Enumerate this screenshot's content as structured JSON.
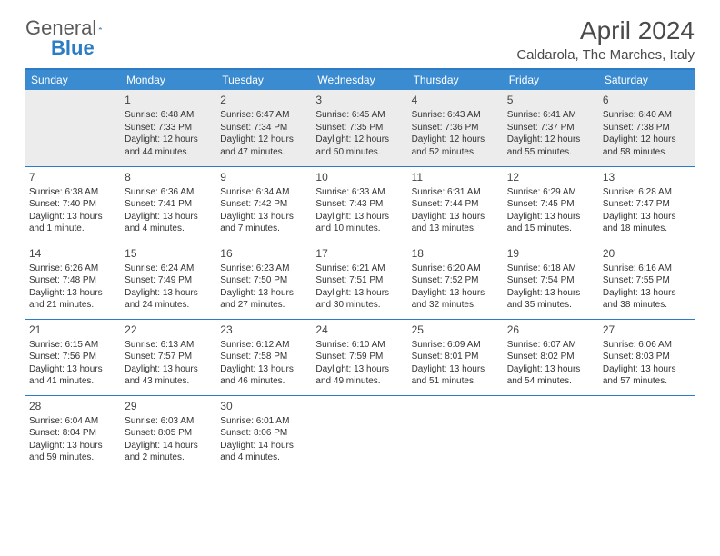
{
  "brand": {
    "word1": "General",
    "word2": "Blue"
  },
  "title": "April 2024",
  "location": "Caldarola, The Marches, Italy",
  "colors": {
    "accent": "#2b7cc4",
    "header_bg": "#3a8bd0",
    "header_text": "#ffffff",
    "shaded_row": "#ececec",
    "text": "#333333",
    "title_text": "#4a4a4a"
  },
  "columns": [
    "Sunday",
    "Monday",
    "Tuesday",
    "Wednesday",
    "Thursday",
    "Friday",
    "Saturday"
  ],
  "weeks": [
    {
      "shaded": true,
      "days": [
        null,
        {
          "n": "1",
          "sunrise": "Sunrise: 6:48 AM",
          "sunset": "Sunset: 7:33 PM",
          "d1": "Daylight: 12 hours",
          "d2": "and 44 minutes."
        },
        {
          "n": "2",
          "sunrise": "Sunrise: 6:47 AM",
          "sunset": "Sunset: 7:34 PM",
          "d1": "Daylight: 12 hours",
          "d2": "and 47 minutes."
        },
        {
          "n": "3",
          "sunrise": "Sunrise: 6:45 AM",
          "sunset": "Sunset: 7:35 PM",
          "d1": "Daylight: 12 hours",
          "d2": "and 50 minutes."
        },
        {
          "n": "4",
          "sunrise": "Sunrise: 6:43 AM",
          "sunset": "Sunset: 7:36 PM",
          "d1": "Daylight: 12 hours",
          "d2": "and 52 minutes."
        },
        {
          "n": "5",
          "sunrise": "Sunrise: 6:41 AM",
          "sunset": "Sunset: 7:37 PM",
          "d1": "Daylight: 12 hours",
          "d2": "and 55 minutes."
        },
        {
          "n": "6",
          "sunrise": "Sunrise: 6:40 AM",
          "sunset": "Sunset: 7:38 PM",
          "d1": "Daylight: 12 hours",
          "d2": "and 58 minutes."
        }
      ]
    },
    {
      "shaded": false,
      "days": [
        {
          "n": "7",
          "sunrise": "Sunrise: 6:38 AM",
          "sunset": "Sunset: 7:40 PM",
          "d1": "Daylight: 13 hours",
          "d2": "and 1 minute."
        },
        {
          "n": "8",
          "sunrise": "Sunrise: 6:36 AM",
          "sunset": "Sunset: 7:41 PM",
          "d1": "Daylight: 13 hours",
          "d2": "and 4 minutes."
        },
        {
          "n": "9",
          "sunrise": "Sunrise: 6:34 AM",
          "sunset": "Sunset: 7:42 PM",
          "d1": "Daylight: 13 hours",
          "d2": "and 7 minutes."
        },
        {
          "n": "10",
          "sunrise": "Sunrise: 6:33 AM",
          "sunset": "Sunset: 7:43 PM",
          "d1": "Daylight: 13 hours",
          "d2": "and 10 minutes."
        },
        {
          "n": "11",
          "sunrise": "Sunrise: 6:31 AM",
          "sunset": "Sunset: 7:44 PM",
          "d1": "Daylight: 13 hours",
          "d2": "and 13 minutes."
        },
        {
          "n": "12",
          "sunrise": "Sunrise: 6:29 AM",
          "sunset": "Sunset: 7:45 PM",
          "d1": "Daylight: 13 hours",
          "d2": "and 15 minutes."
        },
        {
          "n": "13",
          "sunrise": "Sunrise: 6:28 AM",
          "sunset": "Sunset: 7:47 PM",
          "d1": "Daylight: 13 hours",
          "d2": "and 18 minutes."
        }
      ]
    },
    {
      "shaded": false,
      "days": [
        {
          "n": "14",
          "sunrise": "Sunrise: 6:26 AM",
          "sunset": "Sunset: 7:48 PM",
          "d1": "Daylight: 13 hours",
          "d2": "and 21 minutes."
        },
        {
          "n": "15",
          "sunrise": "Sunrise: 6:24 AM",
          "sunset": "Sunset: 7:49 PM",
          "d1": "Daylight: 13 hours",
          "d2": "and 24 minutes."
        },
        {
          "n": "16",
          "sunrise": "Sunrise: 6:23 AM",
          "sunset": "Sunset: 7:50 PM",
          "d1": "Daylight: 13 hours",
          "d2": "and 27 minutes."
        },
        {
          "n": "17",
          "sunrise": "Sunrise: 6:21 AM",
          "sunset": "Sunset: 7:51 PM",
          "d1": "Daylight: 13 hours",
          "d2": "and 30 minutes."
        },
        {
          "n": "18",
          "sunrise": "Sunrise: 6:20 AM",
          "sunset": "Sunset: 7:52 PM",
          "d1": "Daylight: 13 hours",
          "d2": "and 32 minutes."
        },
        {
          "n": "19",
          "sunrise": "Sunrise: 6:18 AM",
          "sunset": "Sunset: 7:54 PM",
          "d1": "Daylight: 13 hours",
          "d2": "and 35 minutes."
        },
        {
          "n": "20",
          "sunrise": "Sunrise: 6:16 AM",
          "sunset": "Sunset: 7:55 PM",
          "d1": "Daylight: 13 hours",
          "d2": "and 38 minutes."
        }
      ]
    },
    {
      "shaded": false,
      "days": [
        {
          "n": "21",
          "sunrise": "Sunrise: 6:15 AM",
          "sunset": "Sunset: 7:56 PM",
          "d1": "Daylight: 13 hours",
          "d2": "and 41 minutes."
        },
        {
          "n": "22",
          "sunrise": "Sunrise: 6:13 AM",
          "sunset": "Sunset: 7:57 PM",
          "d1": "Daylight: 13 hours",
          "d2": "and 43 minutes."
        },
        {
          "n": "23",
          "sunrise": "Sunrise: 6:12 AM",
          "sunset": "Sunset: 7:58 PM",
          "d1": "Daylight: 13 hours",
          "d2": "and 46 minutes."
        },
        {
          "n": "24",
          "sunrise": "Sunrise: 6:10 AM",
          "sunset": "Sunset: 7:59 PM",
          "d1": "Daylight: 13 hours",
          "d2": "and 49 minutes."
        },
        {
          "n": "25",
          "sunrise": "Sunrise: 6:09 AM",
          "sunset": "Sunset: 8:01 PM",
          "d1": "Daylight: 13 hours",
          "d2": "and 51 minutes."
        },
        {
          "n": "26",
          "sunrise": "Sunrise: 6:07 AM",
          "sunset": "Sunset: 8:02 PM",
          "d1": "Daylight: 13 hours",
          "d2": "and 54 minutes."
        },
        {
          "n": "27",
          "sunrise": "Sunrise: 6:06 AM",
          "sunset": "Sunset: 8:03 PM",
          "d1": "Daylight: 13 hours",
          "d2": "and 57 minutes."
        }
      ]
    },
    {
      "shaded": false,
      "days": [
        {
          "n": "28",
          "sunrise": "Sunrise: 6:04 AM",
          "sunset": "Sunset: 8:04 PM",
          "d1": "Daylight: 13 hours",
          "d2": "and 59 minutes."
        },
        {
          "n": "29",
          "sunrise": "Sunrise: 6:03 AM",
          "sunset": "Sunset: 8:05 PM",
          "d1": "Daylight: 14 hours",
          "d2": "and 2 minutes."
        },
        {
          "n": "30",
          "sunrise": "Sunrise: 6:01 AM",
          "sunset": "Sunset: 8:06 PM",
          "d1": "Daylight: 14 hours",
          "d2": "and 4 minutes."
        },
        null,
        null,
        null,
        null
      ]
    }
  ]
}
